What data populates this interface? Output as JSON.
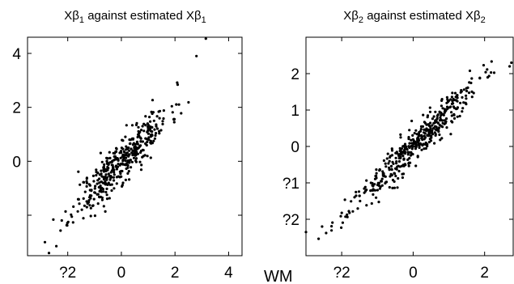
{
  "chart_data": [
    {
      "type": "scatter",
      "title": "Xβ1 against estimated Xβ1",
      "title_parts": {
        "main": "Xβ",
        "sub": "1",
        "mid": " against estimated Xβ",
        "sub2": "1"
      },
      "xlim": [
        -3.5,
        4.5
      ],
      "ylim": [
        -3.5,
        4.6
      ],
      "xticks": [
        -2,
        0,
        2,
        4
      ],
      "xtick_labels": [
        "?2",
        "0",
        "2",
        "4"
      ],
      "yticks": [
        0,
        2,
        4
      ],
      "ytick_labels": [
        "0",
        "2",
        "4"
      ],
      "yticks_unlabeled": [
        -2
      ],
      "grid": false,
      "points": {
        "count": 420,
        "slope": 1.0,
        "intercept": 0.0,
        "x_mean": 0.0,
        "x_sd": 0.9,
        "noise_sd": 0.42,
        "seed": 11,
        "extremes": [
          [
            3.15,
            4.55
          ],
          [
            -2.7,
            -3.4
          ],
          [
            -2.85,
            -3.0
          ],
          [
            2.8,
            3.9
          ]
        ]
      }
    },
    {
      "type": "scatter",
      "title": "Xβ2 against estimated Xβ2",
      "title_parts": {
        "main": "Xβ",
        "sub": "2",
        "mid": " against estimated Xβ",
        "sub2": "2"
      },
      "xlim": [
        -3.0,
        2.8
      ],
      "ylim": [
        -3.0,
        3.0
      ],
      "xticks": [
        -2,
        0,
        2
      ],
      "xtick_labels": [
        "?2",
        "0",
        "2"
      ],
      "yticks": [
        -2,
        -1,
        0,
        1,
        2
      ],
      "ytick_labels": [
        "?2",
        "?1",
        "0",
        "1",
        "2"
      ],
      "grid": false,
      "points": {
        "count": 440,
        "slope": 0.95,
        "intercept": 0.0,
        "x_mean": 0.0,
        "x_sd": 0.9,
        "noise_sd": 0.24,
        "seed": 23,
        "extremes": [
          [
            2.75,
            2.3
          ],
          [
            2.7,
            2.2
          ],
          [
            -3.0,
            -2.35
          ],
          [
            -2.55,
            -2.2
          ]
        ]
      }
    }
  ],
  "stray_label": "WM"
}
